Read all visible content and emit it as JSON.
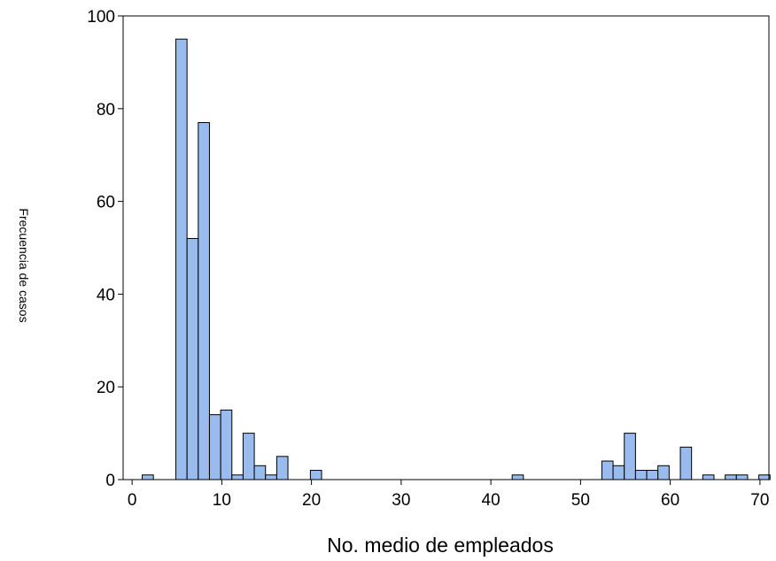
{
  "chart_data": {
    "type": "bar",
    "title": "",
    "xlabel": "No. medio de empleados",
    "ylabel": "Frecuencia de casos",
    "xlim": [
      -1,
      71
    ],
    "ylim": [
      0,
      100
    ],
    "xticks": [
      0,
      10,
      20,
      30,
      40,
      50,
      60,
      70
    ],
    "yticks": [
      0,
      20,
      40,
      60,
      80,
      100
    ],
    "bin_width": 1.25,
    "bar_color": "#99bbee",
    "grid": false,
    "legend": "none",
    "bins": [
      {
        "x": 1.75,
        "value": 1
      },
      {
        "x": 5.5,
        "value": 95
      },
      {
        "x": 6.75,
        "value": 52
      },
      {
        "x": 8.0,
        "value": 77
      },
      {
        "x": 9.25,
        "value": 14
      },
      {
        "x": 10.5,
        "value": 15
      },
      {
        "x": 11.75,
        "value": 1
      },
      {
        "x": 13.0,
        "value": 10
      },
      {
        "x": 14.25,
        "value": 3
      },
      {
        "x": 15.5,
        "value": 1
      },
      {
        "x": 16.75,
        "value": 5
      },
      {
        "x": 20.5,
        "value": 2
      },
      {
        "x": 43.0,
        "value": 1
      },
      {
        "x": 53.0,
        "value": 4
      },
      {
        "x": 54.25,
        "value": 3
      },
      {
        "x": 55.5,
        "value": 10
      },
      {
        "x": 56.75,
        "value": 2
      },
      {
        "x": 58.0,
        "value": 2
      },
      {
        "x": 59.25,
        "value": 3
      },
      {
        "x": 61.75,
        "value": 7
      },
      {
        "x": 64.25,
        "value": 1
      },
      {
        "x": 66.75,
        "value": 1
      },
      {
        "x": 68.0,
        "value": 1
      },
      {
        "x": 70.5,
        "value": 1
      }
    ]
  }
}
